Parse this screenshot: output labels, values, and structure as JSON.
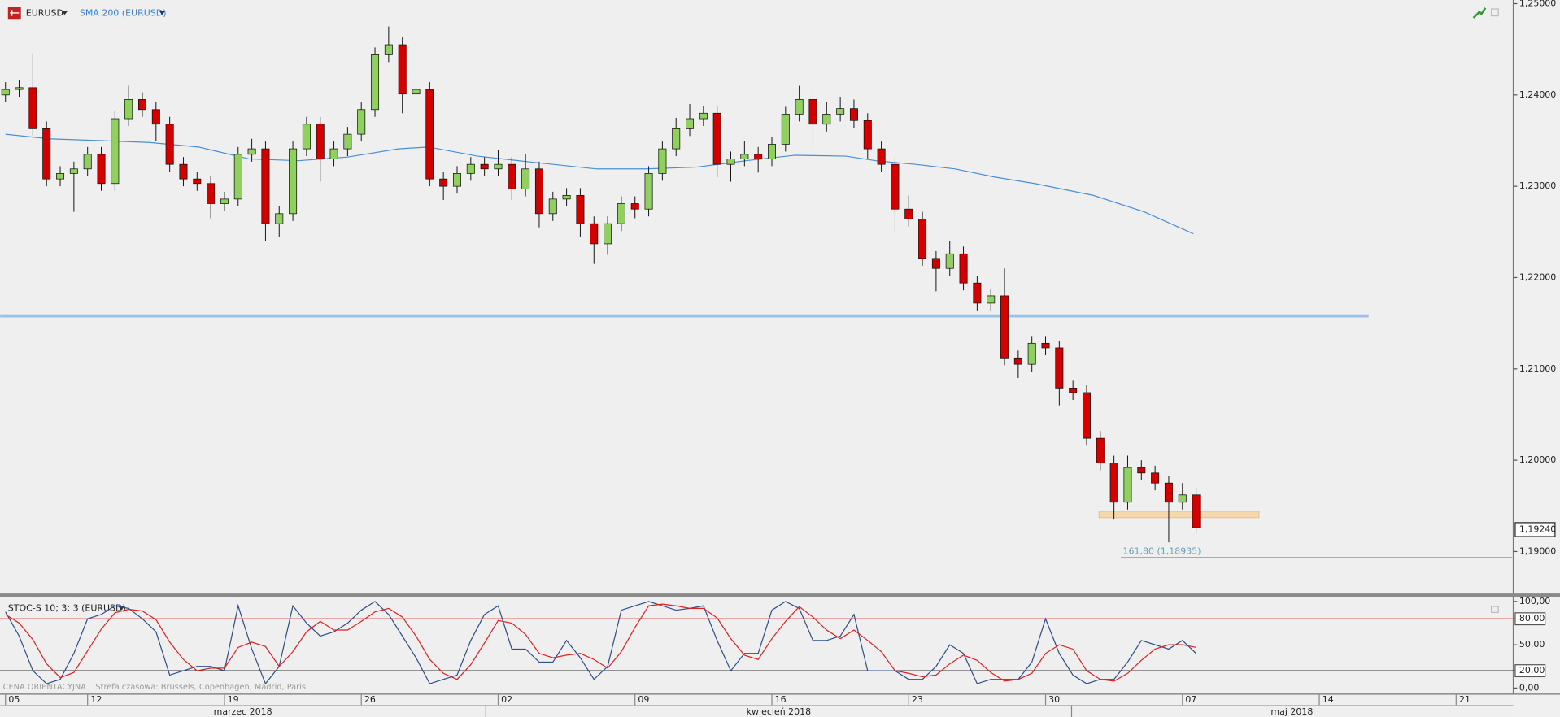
{
  "chart_data": [
    {
      "type": "candlestick",
      "title": "EURUSD",
      "overlay_title": "SMA 200 (EURUSD)",
      "x": [
        4,
        5,
        6,
        7,
        8,
        9,
        10,
        11,
        12,
        13,
        14,
        15,
        16,
        17,
        18,
        19,
        20,
        21,
        22,
        23,
        24,
        25,
        26,
        27,
        28,
        29,
        30,
        31,
        32,
        33,
        34,
        35,
        36,
        37,
        38,
        39,
        40,
        41,
        42,
        43,
        44,
        45,
        46,
        47,
        48,
        49,
        50,
        51,
        52,
        53,
        54,
        55,
        56,
        57,
        58,
        59,
        60,
        61,
        62,
        63,
        64,
        65,
        66,
        67,
        68,
        69,
        70,
        71,
        72,
        73,
        74,
        75,
        76,
        77,
        78,
        79,
        80,
        81,
        82,
        83,
        84,
        85,
        86,
        87,
        88,
        89,
        90,
        91
      ],
      "open": [
        1.24,
        1.2406,
        1.2408,
        1.2363,
        1.2308,
        1.2314,
        1.2319,
        1.2335,
        1.2303,
        1.2374,
        1.2395,
        1.2384,
        1.2368,
        1.2324,
        1.2308,
        1.2303,
        1.2281,
        1.2286,
        1.2335,
        1.2341,
        1.2259,
        1.227,
        1.2341,
        1.2368,
        1.233,
        1.2341,
        1.2357,
        1.2384,
        1.2444,
        1.2455,
        1.2401,
        1.2406,
        1.2308,
        1.23,
        1.2314,
        1.2324,
        1.2319,
        1.2324,
        1.2297,
        1.2319,
        1.227,
        1.2286,
        1.229,
        1.2259,
        1.2237,
        1.2259,
        1.2281,
        1.2275,
        1.2314,
        1.2341,
        1.2363,
        1.2374,
        1.238,
        1.2324,
        1.233,
        1.2335,
        1.233,
        1.2346,
        1.2379,
        1.2395,
        1.2368,
        1.2379,
        1.2385,
        1.2372,
        1.2341,
        1.2324,
        1.2275,
        1.2264,
        1.2221,
        1.221,
        1.2226,
        1.2194,
        1.2172,
        1.218,
        1.2112,
        1.2105,
        1.2128,
        1.2123,
        1.2079,
        1.2074,
        1.2024,
        1.1997,
        1.1954,
        1.1992,
        1.1986,
        1.1975,
        1.1954,
        1.1962
      ],
      "high": [
        1.2414,
        1.2416,
        1.2445,
        1.2371,
        1.2322,
        1.2327,
        1.2343,
        1.2343,
        1.2382,
        1.241,
        1.2403,
        1.2392,
        1.2376,
        1.2332,
        1.2316,
        1.2311,
        1.2294,
        1.2343,
        1.2352,
        1.2349,
        1.2278,
        1.2349,
        1.2376,
        1.2376,
        1.2349,
        1.2365,
        1.2392,
        1.2452,
        1.2475,
        1.2463,
        1.2414,
        1.2414,
        1.2316,
        1.2322,
        1.2332,
        1.2332,
        1.234,
        1.2332,
        1.2335,
        1.2327,
        1.2294,
        1.2298,
        1.2298,
        1.2267,
        1.2267,
        1.2289,
        1.2289,
        1.2322,
        1.2349,
        1.2375,
        1.239,
        1.2388,
        1.2388,
        1.2338,
        1.235,
        1.2343,
        1.2354,
        1.2387,
        1.241,
        1.2403,
        1.2392,
        1.2398,
        1.2395,
        1.238,
        1.2349,
        1.2332,
        1.229,
        1.2272,
        1.2229,
        1.224,
        1.2234,
        1.2202,
        1.2188,
        1.221,
        1.212,
        1.2136,
        1.2136,
        1.2131,
        1.2087,
        1.2082,
        1.2032,
        1.2005,
        1.2005,
        1.2,
        1.1994,
        1.1983,
        1.1975,
        1.197
      ],
      "low": [
        1.2392,
        1.2398,
        1.2355,
        1.23,
        1.23,
        1.2272,
        1.2311,
        1.2295,
        1.2295,
        1.2366,
        1.2376,
        1.235,
        1.2316,
        1.23,
        1.2295,
        1.2265,
        1.2273,
        1.2278,
        1.2327,
        1.224,
        1.2245,
        1.2262,
        1.2333,
        1.2305,
        1.2322,
        1.2333,
        1.2349,
        1.2376,
        1.2436,
        1.238,
        1.2385,
        1.23,
        1.2285,
        1.2292,
        1.2306,
        1.2311,
        1.2311,
        1.2285,
        1.2289,
        1.2255,
        1.2262,
        1.2278,
        1.2245,
        1.2215,
        1.2225,
        1.2251,
        1.2265,
        1.2267,
        1.2306,
        1.2333,
        1.2355,
        1.2366,
        1.231,
        1.2305,
        1.2322,
        1.2315,
        1.2322,
        1.2338,
        1.2371,
        1.2335,
        1.236,
        1.2371,
        1.2364,
        1.233,
        1.2316,
        1.225,
        1.2256,
        1.2213,
        1.2185,
        1.2202,
        1.2186,
        1.2164,
        1.2164,
        1.2104,
        1.209,
        1.2097,
        1.2115,
        1.206,
        1.2066,
        1.2016,
        1.1989,
        1.1935,
        1.1946,
        1.1978,
        1.1967,
        1.191,
        1.1946,
        1.192
      ],
      "close": [
        1.2406,
        1.2408,
        1.2363,
        1.2308,
        1.2314,
        1.2319,
        1.2335,
        1.2303,
        1.2374,
        1.2395,
        1.2384,
        1.2368,
        1.2324,
        1.2308,
        1.2303,
        1.2281,
        1.2286,
        1.2335,
        1.2341,
        1.2259,
        1.227,
        1.2341,
        1.2368,
        1.233,
        1.2341,
        1.2357,
        1.2384,
        1.2444,
        1.2455,
        1.2401,
        1.2406,
        1.2308,
        1.23,
        1.2314,
        1.2324,
        1.2319,
        1.2324,
        1.2297,
        1.2319,
        1.227,
        1.2286,
        1.229,
        1.2259,
        1.2237,
        1.2259,
        1.2281,
        1.2275,
        1.2314,
        1.2341,
        1.2363,
        1.2374,
        1.238,
        1.2324,
        1.233,
        1.2335,
        1.233,
        1.2346,
        1.2379,
        1.2395,
        1.2368,
        1.2379,
        1.2385,
        1.2372,
        1.2341,
        1.2324,
        1.2275,
        1.2264,
        1.2221,
        1.221,
        1.2226,
        1.2194,
        1.2172,
        1.218,
        1.2112,
        1.2105,
        1.2128,
        1.2123,
        1.2079,
        1.2074,
        1.2024,
        1.1997,
        1.1954,
        1.1992,
        1.1986,
        1.1975,
        1.1954,
        1.1962,
        1.1926
      ],
      "up_color": "#8fd05f",
      "down_color": "#d40000",
      "overlay": {
        "color": "#4a8fd6",
        "x": [
          4.0,
          7.2,
          10.9,
          14.5,
          18.1,
          21.8,
          25.4,
          29.0,
          32.7,
          34.9,
          38.5,
          42.1,
          47.2,
          50.8,
          54.5,
          58.1,
          61.7,
          65.4,
          67.6,
          70.5,
          73.4,
          76.3,
          79.2,
          83.5,
          87.2,
          90.8
        ],
        "values": [
          1.2357,
          1.2352,
          1.235,
          1.2348,
          1.2343,
          1.233,
          1.2328,
          1.2332,
          1.2341,
          1.2343,
          1.2333,
          1.2327,
          1.2319,
          1.2319,
          1.2321,
          1.2328,
          1.2334,
          1.2333,
          1.2328,
          1.2324,
          1.2319,
          1.231,
          1.2303,
          1.229,
          1.2272,
          1.2248
        ]
      },
      "level": {
        "value": 1.2158,
        "x_end": 103.6,
        "color": "#9cc3e6"
      },
      "zone": {
        "from": 1.1937,
        "to": 1.1944,
        "x_start": 83.9,
        "x_end": 95.6,
        "color": "#f6d8ae"
      },
      "fib": {
        "value": 1.18935,
        "label": "161,80 (1,18935)",
        "x_start": 85.5,
        "color": "#6a9fb5"
      },
      "last_price": {
        "value": 1.1924,
        "label": "1,19240"
      },
      "xlim": [
        3.6,
        114.1
      ],
      "ylim": [
        1.1854,
        1.2504
      ],
      "yticks": [
        {
          "value": 1.19,
          "label": "1,19000"
        },
        {
          "value": 1.2,
          "label": "1,20000"
        },
        {
          "value": 1.21,
          "label": "1,21000"
        },
        {
          "value": 1.22,
          "label": "1,22000"
        },
        {
          "value": 1.23,
          "label": "1,23000"
        },
        {
          "value": 1.24,
          "label": "1,24000"
        },
        {
          "value": 1.25,
          "label": "1,25000"
        }
      ]
    },
    {
      "type": "line",
      "title": "STOC-S 10; 3; 3 (EURUSD)",
      "x": [
        4,
        5,
        6,
        7,
        8,
        9,
        10,
        11,
        12,
        13,
        14,
        15,
        16,
        17,
        18,
        19,
        20,
        21,
        22,
        23,
        24,
        25,
        26,
        27,
        28,
        29,
        30,
        31,
        32,
        33,
        34,
        35,
        36,
        37,
        38,
        39,
        40,
        41,
        42,
        43,
        44,
        45,
        46,
        47,
        48,
        49,
        50,
        51,
        52,
        53,
        54,
        55,
        56,
        57,
        58,
        59,
        60,
        61,
        62,
        63,
        64,
        65,
        66,
        67,
        68,
        69,
        70,
        71,
        72,
        73,
        74,
        75,
        76,
        77,
        78,
        79,
        80,
        81,
        82,
        83,
        84,
        85,
        86,
        87,
        88,
        89,
        90,
        91
      ],
      "series": [
        {
          "color": "#2f4f8a",
          "values": [
            88,
            60,
            20,
            5,
            10,
            40,
            80,
            85,
            95,
            92,
            80,
            65,
            15,
            20,
            25,
            25,
            20,
            95,
            45,
            5,
            25,
            95,
            75,
            60,
            65,
            75,
            90,
            100,
            85,
            60,
            35,
            5,
            10,
            15,
            55,
            85,
            95,
            45,
            45,
            30,
            30,
            55,
            35,
            10,
            25,
            90,
            95,
            100,
            95,
            90,
            92,
            95,
            55,
            20,
            40,
            40,
            90,
            100,
            92,
            55,
            55,
            60,
            85,
            20,
            20,
            20,
            10,
            10,
            25,
            50,
            40,
            5,
            10,
            10,
            10,
            30,
            80,
            40,
            15,
            5,
            10,
            10,
            30,
            55,
            50,
            45,
            55,
            40
          ]
        },
        {
          "color": "#e02020",
          "values": [
            85,
            75,
            56,
            28,
            12,
            18,
            43,
            68,
            87,
            91,
            89,
            79,
            53,
            33,
            20,
            23,
            23,
            47,
            53,
            48,
            25,
            42,
            65,
            77,
            67,
            67,
            77,
            88,
            92,
            82,
            60,
            33,
            17,
            10,
            27,
            52,
            78,
            75,
            62,
            40,
            35,
            38,
            40,
            33,
            23,
            42,
            70,
            95,
            97,
            95,
            92,
            92,
            81,
            57,
            38,
            33,
            57,
            77,
            94,
            82,
            67,
            57,
            67,
            55,
            42,
            20,
            17,
            13,
            15,
            28,
            38,
            32,
            18,
            8,
            10,
            17,
            40,
            50,
            45,
            20,
            10,
            8,
            17,
            32,
            45,
            50,
            50,
            47
          ]
        }
      ],
      "ref_lines": [
        {
          "value": 80,
          "color": "#e03030"
        },
        {
          "value": 20,
          "color": "#333333"
        }
      ],
      "xlim": [
        3.6,
        114.1
      ],
      "ylim": [
        -7,
        104.6
      ],
      "yticks": [
        {
          "value": 0,
          "label": "0,00"
        },
        {
          "value": 20,
          "label": "20,00"
        },
        {
          "value": 50,
          "label": "50,00"
        },
        {
          "value": 80,
          "label": "80,00"
        },
        {
          "value": 100,
          "label": "100,00"
        }
      ],
      "xticks": [
        {
          "value": 4,
          "label": "05"
        },
        {
          "value": 10,
          "label": "12"
        },
        {
          "value": 20,
          "label": "19"
        },
        {
          "value": 30,
          "label": "26"
        },
        {
          "value": 40,
          "label": "02"
        },
        {
          "value": 50,
          "label": "09"
        },
        {
          "value": 60,
          "label": "16"
        },
        {
          "value": 70,
          "label": "23"
        },
        {
          "value": 80,
          "label": "30"
        },
        {
          "value": 90,
          "label": "07"
        },
        {
          "value": 100,
          "label": "14"
        },
        {
          "value": 110,
          "label": "21"
        }
      ],
      "months": [
        "marzec 2018",
        "kwiecień 2018",
        "maj 2018"
      ],
      "month_breaks": [
        39.1,
        81.9
      ],
      "footnote": "CENA ORIENTACYJNA",
      "timezone": "Strefa czasowa: Brussels, Copenhagen, Madrid, Paris"
    }
  ]
}
